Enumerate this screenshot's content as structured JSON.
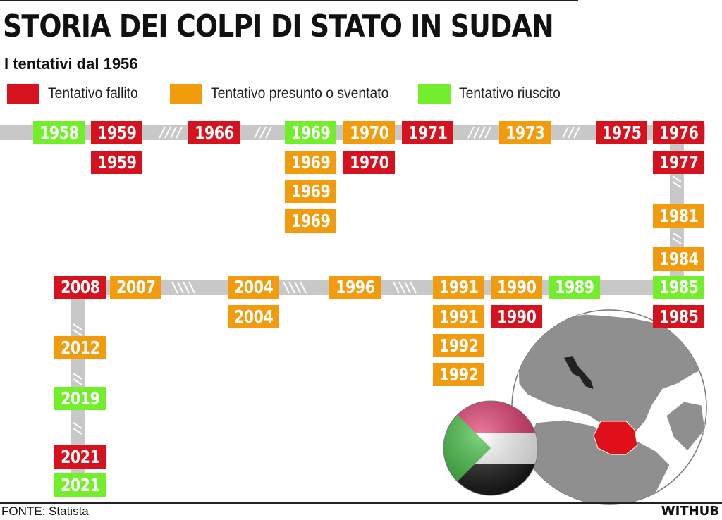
{
  "header": {
    "title": "STORIA DEI COLPI DI STATO IN SUDAN",
    "subtitle": "I tentativi dal 1956"
  },
  "legend": [
    {
      "label": "Tentativo fallito",
      "color": "#d7121f"
    },
    {
      "label": "Tentativo presunto o sventato",
      "color": "#f29c0d"
    },
    {
      "label": "Tentativo riuscito",
      "color": "#73ee2b"
    }
  ],
  "colors": {
    "fallito": "#d7121f",
    "presunto": "#f29c0d",
    "riuscito": "#73ee2b",
    "track": "#c8c8c8"
  },
  "events": [
    {
      "year": "1958",
      "status": "riuscito"
    },
    {
      "year": "1959",
      "status": "fallito"
    },
    {
      "year": "1959",
      "status": "fallito"
    },
    {
      "year": "1966",
      "status": "fallito"
    },
    {
      "year": "1969",
      "status": "riuscito"
    },
    {
      "year": "1969",
      "status": "presunto"
    },
    {
      "year": "1969",
      "status": "presunto"
    },
    {
      "year": "1969",
      "status": "presunto"
    },
    {
      "year": "1970",
      "status": "presunto"
    },
    {
      "year": "1970",
      "status": "fallito"
    },
    {
      "year": "1971",
      "status": "fallito"
    },
    {
      "year": "1973",
      "status": "presunto"
    },
    {
      "year": "1975",
      "status": "fallito"
    },
    {
      "year": "1976",
      "status": "fallito"
    },
    {
      "year": "1977",
      "status": "fallito"
    },
    {
      "year": "1981",
      "status": "presunto"
    },
    {
      "year": "1984",
      "status": "presunto"
    },
    {
      "year": "1985",
      "status": "riuscito"
    },
    {
      "year": "1985",
      "status": "fallito"
    },
    {
      "year": "1989",
      "status": "riuscito"
    },
    {
      "year": "1990",
      "status": "presunto"
    },
    {
      "year": "1990",
      "status": "fallito"
    },
    {
      "year": "1991",
      "status": "presunto"
    },
    {
      "year": "1991",
      "status": "presunto"
    },
    {
      "year": "1992",
      "status": "presunto"
    },
    {
      "year": "1992",
      "status": "presunto"
    },
    {
      "year": "1996",
      "status": "presunto"
    },
    {
      "year": "2004",
      "status": "presunto"
    },
    {
      "year": "2004",
      "status": "presunto"
    },
    {
      "year": "2007",
      "status": "presunto"
    },
    {
      "year": "2008",
      "status": "fallito"
    },
    {
      "year": "2012",
      "status": "presunto"
    },
    {
      "year": "2019",
      "status": "riuscito"
    },
    {
      "year": "2021",
      "status": "fallito"
    },
    {
      "year": "2021",
      "status": "riuscito"
    }
  ],
  "footer": {
    "source": "FONTE: Statista",
    "brand": "WITHUB"
  }
}
